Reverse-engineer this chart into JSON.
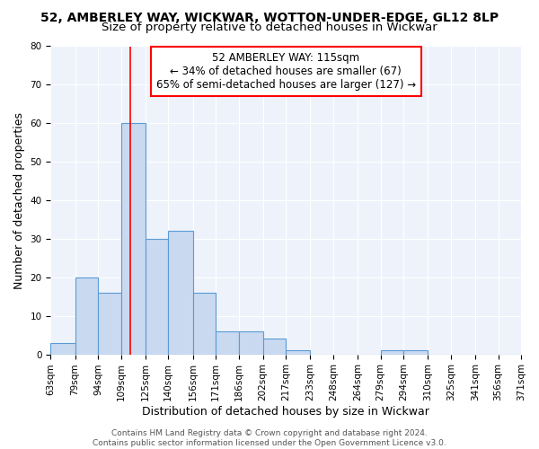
{
  "title_line1": "52, AMBERLEY WAY, WICKWAR, WOTTON-UNDER-EDGE, GL12 8LP",
  "title_line2": "Size of property relative to detached houses in Wickwar",
  "xlabel": "Distribution of detached houses by size in Wickwar",
  "ylabel": "Number of detached properties",
  "bar_color": "#c9d9f0",
  "bar_edge_color": "#5b9bd5",
  "bin_edges": [
    63,
    79,
    94,
    109,
    125,
    140,
    156,
    171,
    186,
    202,
    217,
    233,
    248,
    264,
    279,
    294,
    310,
    325,
    341,
    356,
    371
  ],
  "bar_heights": [
    3,
    20,
    16,
    60,
    30,
    32,
    16,
    6,
    6,
    4,
    1,
    0,
    0,
    0,
    1,
    1,
    0,
    0,
    0,
    0
  ],
  "tick_labels": [
    "63sqm",
    "79sqm",
    "94sqm",
    "109sqm",
    "125sqm",
    "140sqm",
    "156sqm",
    "171sqm",
    "186sqm",
    "202sqm",
    "217sqm",
    "233sqm",
    "248sqm",
    "264sqm",
    "279sqm",
    "294sqm",
    "310sqm",
    "325sqm",
    "341sqm",
    "356sqm",
    "371sqm"
  ],
  "red_line_x": 115,
  "ylim": [
    0,
    80
  ],
  "yticks": [
    0,
    10,
    20,
    30,
    40,
    50,
    60,
    70,
    80
  ],
  "annotation_title": "52 AMBERLEY WAY: 115sqm",
  "annotation_line2": "← 34% of detached houses are smaller (67)",
  "annotation_line3": "65% of semi-detached houses are larger (127) →",
  "annotation_box_color": "white",
  "annotation_edge_color": "red",
  "background_color": "#eef3fb",
  "footer_text": "Contains HM Land Registry data © Crown copyright and database right 2024.\nContains public sector information licensed under the Open Government Licence v3.0.",
  "title_fontsize": 10,
  "subtitle_fontsize": 9.5,
  "axis_label_fontsize": 9,
  "tick_fontsize": 7.5,
  "annotation_fontsize": 8.5,
  "footer_fontsize": 6.5
}
